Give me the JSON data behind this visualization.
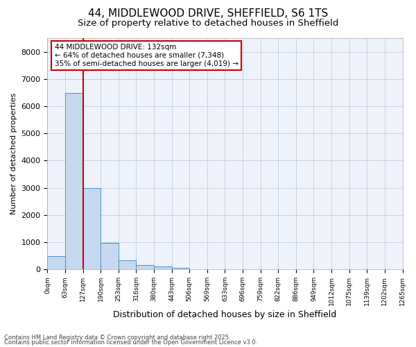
{
  "title_line1": "44, MIDDLEWOOD DRIVE, SHEFFIELD, S6 1TS",
  "title_line2": "Size of property relative to detached houses in Sheffield",
  "xlabel": "Distribution of detached houses by size in Sheffield",
  "ylabel": "Number of detached properties",
  "bin_edges": [
    "0sqm",
    "63sqm",
    "127sqm",
    "190sqm",
    "253sqm",
    "316sqm",
    "380sqm",
    "443sqm",
    "506sqm",
    "569sqm",
    "633sqm",
    "696sqm",
    "759sqm",
    "822sqm",
    "886sqm",
    "949sqm",
    "1012sqm",
    "1075sqm",
    "1139sqm",
    "1202sqm",
    "1265sqm"
  ],
  "bar_values": [
    500,
    6480,
    2980,
    980,
    340,
    155,
    100,
    55,
    10,
    5,
    3,
    2,
    1,
    1,
    0,
    0,
    0,
    0,
    0,
    0
  ],
  "bar_color": "#c5d8f0",
  "bar_edge_color": "#4a90c4",
  "annotation_title": "44 MIDDLEWOOD DRIVE: 132sqm",
  "annotation_line1": "← 64% of detached houses are smaller (7,348)",
  "annotation_line2": "35% of semi-detached houses are larger (4,019) →",
  "annotation_box_color": "#cc0000",
  "vline_color": "#cc0000",
  "vline_x": 1.5,
  "ylim": [
    0,
    8500
  ],
  "yticks": [
    0,
    1000,
    2000,
    3000,
    4000,
    5000,
    6000,
    7000,
    8000
  ],
  "grid_color": "#c8d0e0",
  "bg_color": "#eef2fa",
  "footnote1": "Contains HM Land Registry data © Crown copyright and database right 2025.",
  "footnote2": "Contains public sector information licensed under the Open Government Licence v3.0."
}
